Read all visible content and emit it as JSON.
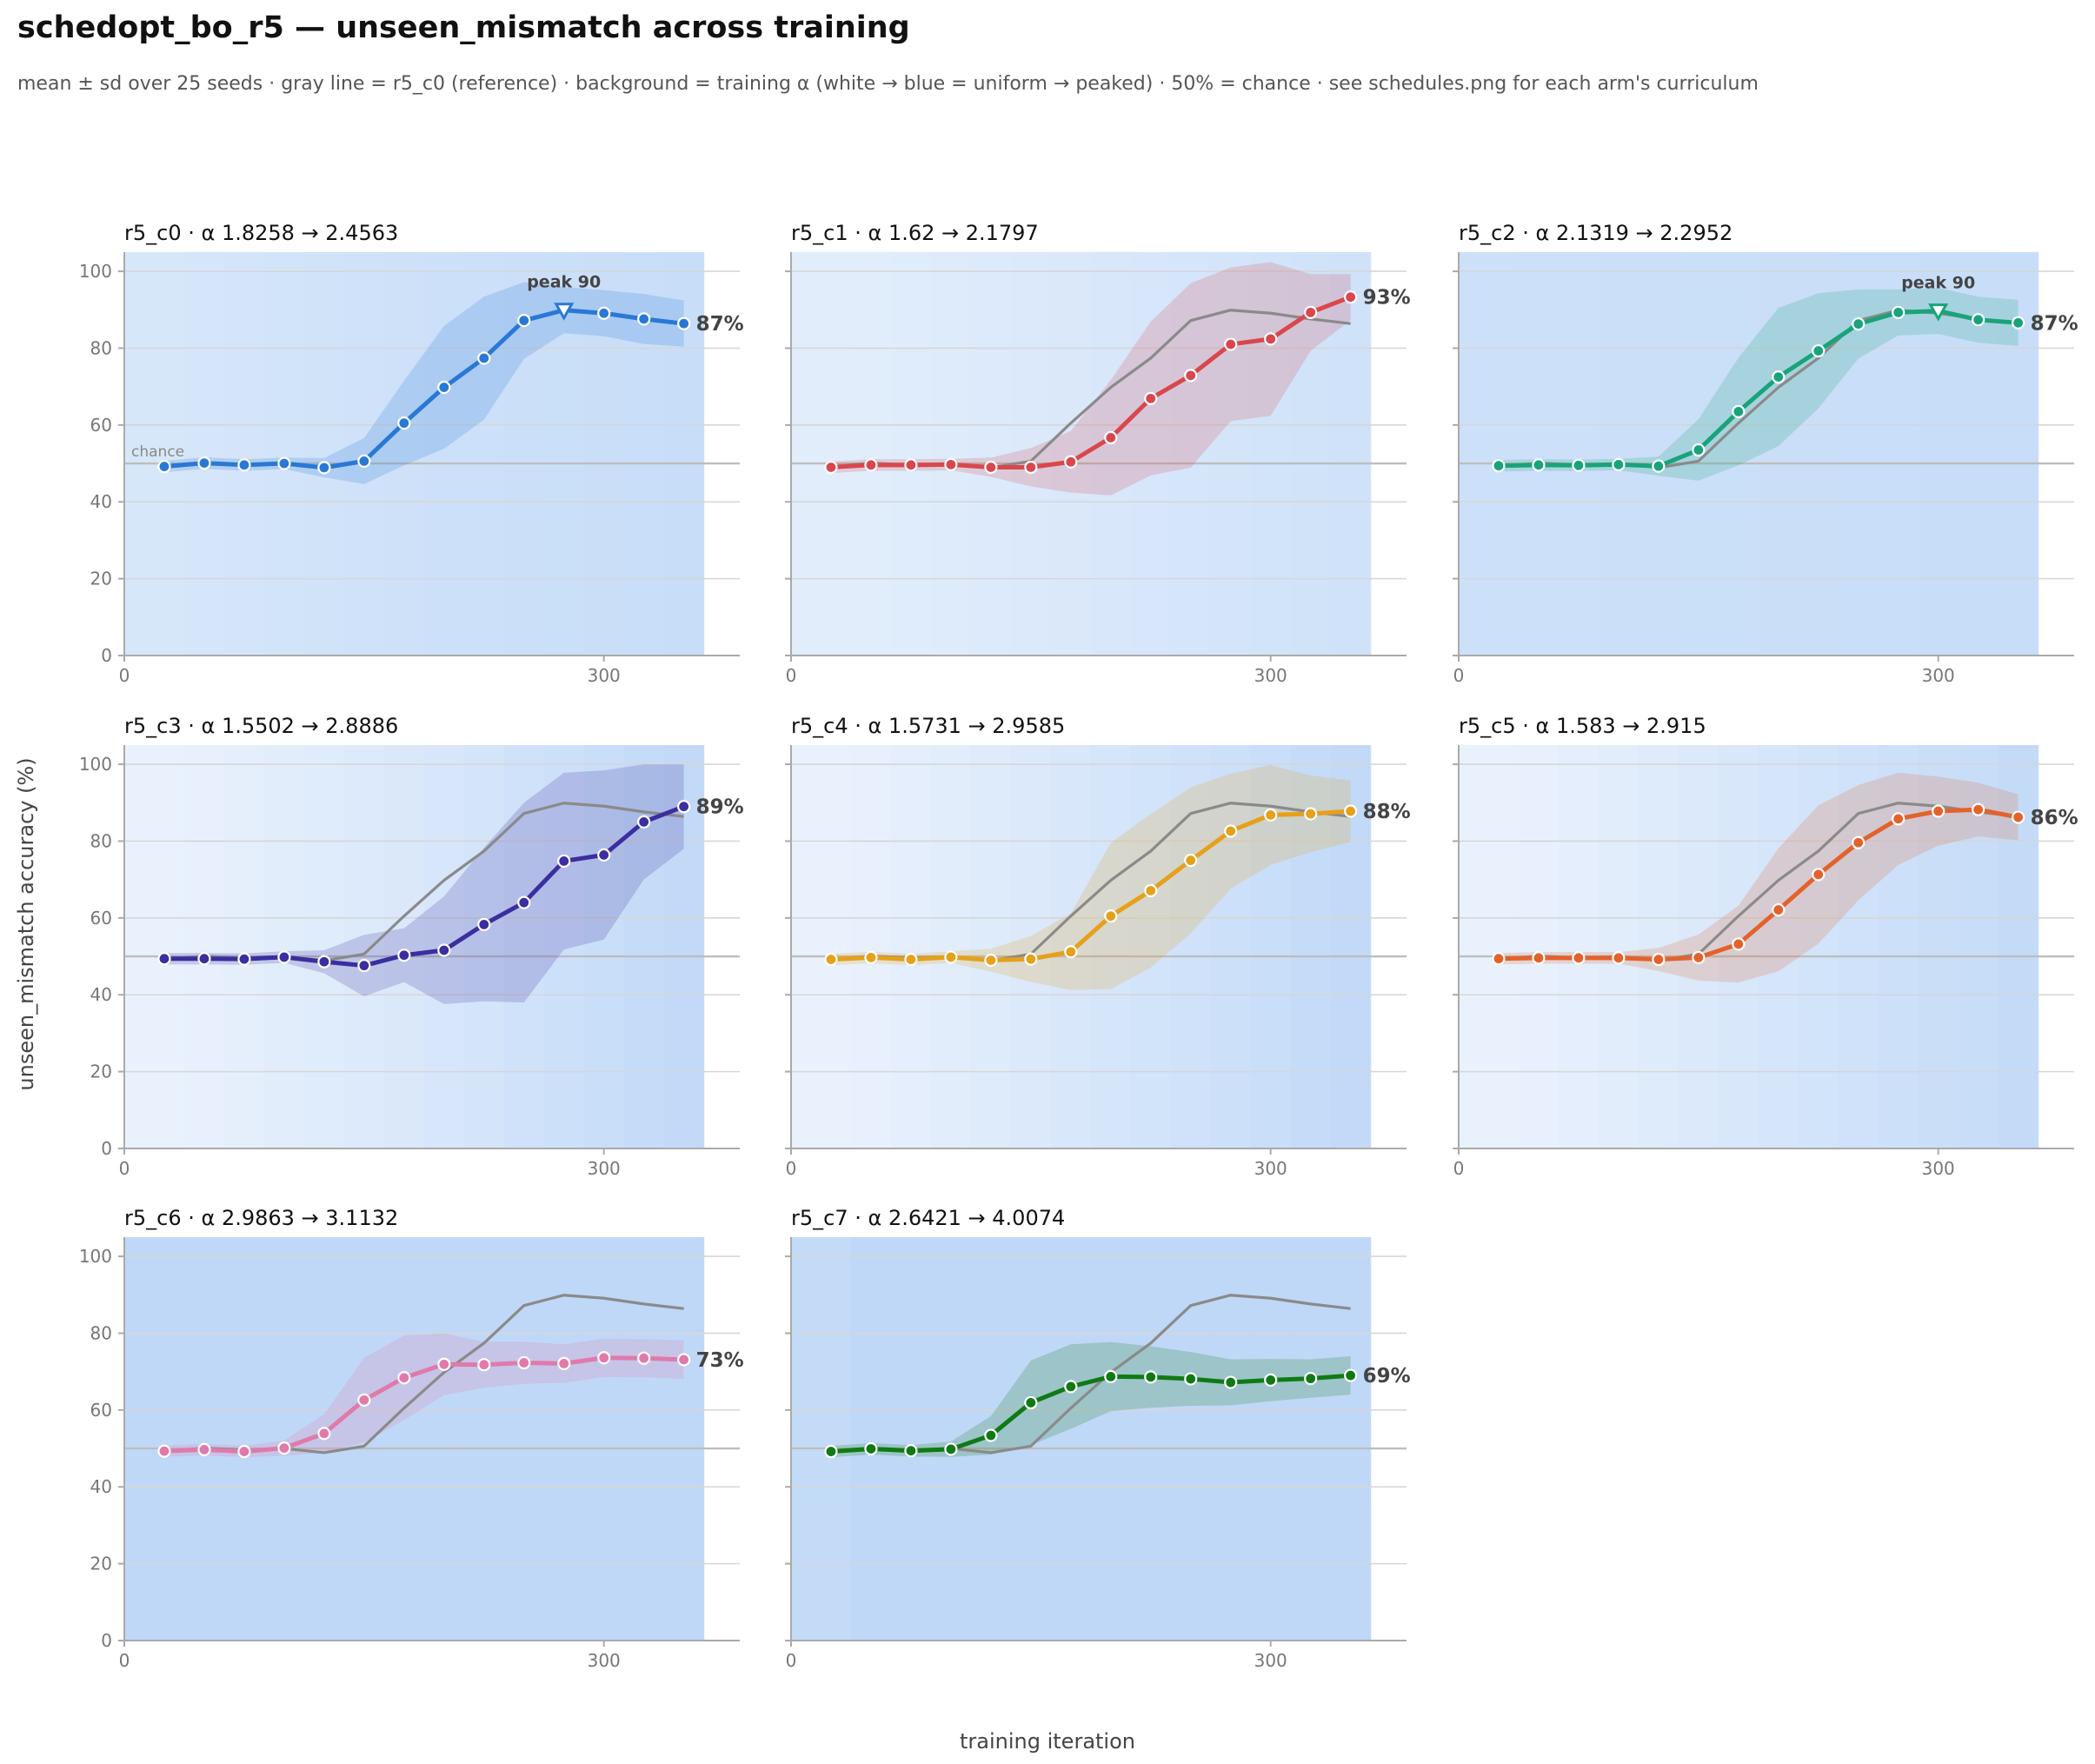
{
  "title": "schedopt_bo_r5 — unseen_mismatch across training",
  "subtitle": "mean ± sd over 25 seeds · gray line = r5_c0 (reference) · background = training α (white → blue = uniform → peaked) · 50% = chance · see schedules.png for each arm's curriculum",
  "chart_data": {
    "type": "line",
    "xlabel": "training iteration",
    "ylabel": "unseen_mismatch accuracy (%)",
    "xlim": [
      0,
      385
    ],
    "ylim": [
      0,
      105
    ],
    "x_ticks": [
      0,
      300
    ],
    "x_tick_labels": [
      "0",
      "300"
    ],
    "y_ticks": [
      0,
      20,
      40,
      60,
      80,
      100
    ],
    "y_tick_labels": [
      "0",
      "20",
      "40",
      "60",
      "80",
      "100"
    ],
    "x": [
      25,
      50,
      75,
      100,
      125,
      150,
      175,
      200,
      225,
      250,
      275,
      300,
      325,
      350
    ],
    "alpha_segment_width": 25,
    "chance_level": 50,
    "chance_label": "chance",
    "grid": "horizontal",
    "reference": {
      "name": "r5_c0",
      "color": "#8a8a8a",
      "values": [
        49.2,
        50.1,
        49.6,
        50.0,
        48.9,
        50.6,
        60.5,
        69.8,
        77.4,
        87.2,
        89.9,
        89.1,
        87.6,
        86.4
      ]
    },
    "panels": [
      {
        "name": "r5_c0",
        "sep": "·",
        "alpha_text": "α 1.8258 → 2.4563",
        "color": "#2a78d6",
        "values": [
          49.2,
          50.1,
          49.6,
          50.0,
          48.9,
          50.6,
          60.5,
          69.8,
          77.4,
          87.2,
          89.9,
          89.1,
          87.6,
          86.4
        ],
        "sd": [
          1.5,
          1.5,
          1.5,
          1.5,
          2.5,
          6.0,
          11.0,
          16.0,
          16.0,
          10.0,
          6.0,
          6.0,
          6.5,
          6.0
        ],
        "alpha_levels": [
          0.55,
          0.58,
          0.6,
          0.62,
          0.64,
          0.66,
          0.68,
          0.7,
          0.71,
          0.72,
          0.73,
          0.74,
          0.75,
          0.76
        ],
        "end_label": "87%",
        "peak": {
          "x": 275,
          "y": 89.9,
          "label": "peak 90"
        },
        "show_chance_label": true
      },
      {
        "name": "r5_c1",
        "sep": "·",
        "alpha_text": "α 1.62 → 2.1797",
        "color": "#d9474c",
        "values": [
          49.0,
          49.6,
          49.6,
          49.7,
          49.0,
          49.0,
          50.4,
          56.7,
          66.9,
          72.9,
          81.0,
          82.4,
          89.3,
          93.3
        ],
        "sd": [
          1.5,
          1.5,
          1.5,
          1.5,
          2.5,
          5.0,
          8.0,
          15.0,
          20.0,
          24.0,
          20.0,
          20.0,
          10.0,
          6.0
        ],
        "alpha_levels": [
          0.4,
          0.42,
          0.44,
          0.46,
          0.48,
          0.5,
          0.52,
          0.54,
          0.56,
          0.58,
          0.6,
          0.62,
          0.64,
          0.66
        ],
        "end_label": "93%",
        "peak": null,
        "show_chance_label": false
      },
      {
        "name": "r5_c2",
        "sep": "·",
        "alpha_text": "α 2.1319 → 2.2952",
        "color": "#1aa37a",
        "values": [
          49.4,
          49.6,
          49.5,
          49.7,
          49.3,
          53.5,
          63.5,
          72.5,
          79.3,
          86.3,
          89.3,
          89.7,
          87.4,
          86.6
        ],
        "sd": [
          1.5,
          1.5,
          1.5,
          1.5,
          2.5,
          8.0,
          14.0,
          18.0,
          15.0,
          9.0,
          6.0,
          6.0,
          6.0,
          6.0
        ],
        "alpha_levels": [
          0.7,
          0.71,
          0.71,
          0.72,
          0.72,
          0.73,
          0.73,
          0.74,
          0.74,
          0.75,
          0.75,
          0.76,
          0.76,
          0.77
        ],
        "end_label": "87%",
        "peak": {
          "x": 300,
          "y": 89.7,
          "label": "peak 90"
        },
        "show_chance_label": false
      },
      {
        "name": "r5_c3",
        "sep": "·",
        "alpha_text": "α 1.5502 → 2.8886",
        "color": "#3a2ea0",
        "values": [
          49.4,
          49.4,
          49.3,
          49.8,
          48.6,
          47.6,
          50.3,
          51.6,
          58.3,
          64.0,
          74.8,
          76.4,
          85.0,
          89.0
        ],
        "sd": [
          1.5,
          1.5,
          1.5,
          1.5,
          3.0,
          8.0,
          7.0,
          14.0,
          20.0,
          26.0,
          23.0,
          22.0,
          15.0,
          11.0
        ],
        "alpha_levels": [
          0.3,
          0.33,
          0.36,
          0.4,
          0.44,
          0.48,
          0.52,
          0.56,
          0.6,
          0.65,
          0.7,
          0.75,
          0.8,
          0.85
        ],
        "end_label": "89%",
        "peak": null,
        "show_chance_label": false
      },
      {
        "name": "r5_c4",
        "sep": "·",
        "alpha_text": "α 1.5731 → 2.9585",
        "color": "#e6a01a",
        "values": [
          49.2,
          49.7,
          49.2,
          49.8,
          49.0,
          49.3,
          51.2,
          60.5,
          67.1,
          75.0,
          82.6,
          86.8,
          87.1,
          87.8
        ],
        "sd": [
          1.5,
          1.5,
          1.5,
          1.5,
          3.0,
          6.0,
          10.0,
          19.0,
          20.0,
          19.0,
          15.0,
          13.0,
          10.0,
          8.0
        ],
        "alpha_levels": [
          0.3,
          0.34,
          0.38,
          0.42,
          0.46,
          0.5,
          0.54,
          0.58,
          0.62,
          0.66,
          0.7,
          0.75,
          0.8,
          0.85
        ],
        "end_label": "88%",
        "peak": null,
        "show_chance_label": false
      },
      {
        "name": "r5_c5",
        "sep": "·",
        "alpha_text": "α 1.583 → 2.915",
        "color": "#e3622c",
        "values": [
          49.4,
          49.6,
          49.6,
          49.6,
          49.2,
          49.7,
          53.2,
          62.1,
          71.3,
          79.6,
          85.8,
          87.8,
          88.2,
          86.2
        ],
        "sd": [
          1.5,
          1.5,
          1.5,
          1.5,
          3.0,
          6.0,
          10.0,
          16.0,
          18.0,
          15.0,
          12.0,
          9.0,
          7.0,
          6.0
        ],
        "alpha_levels": [
          0.3,
          0.34,
          0.38,
          0.42,
          0.46,
          0.5,
          0.54,
          0.58,
          0.62,
          0.66,
          0.7,
          0.74,
          0.78,
          0.82
        ],
        "end_label": "86%",
        "peak": null,
        "show_chance_label": false
      },
      {
        "name": "r5_c6",
        "sep": "·",
        "alpha_text": "α 2.9863 → 3.1132",
        "color": "#e07aaa",
        "values": [
          49.3,
          49.7,
          49.2,
          50.1,
          53.9,
          62.6,
          68.4,
          71.9,
          71.8,
          72.3,
          72.1,
          73.6,
          73.5,
          73.1
        ],
        "sd": [
          1.5,
          1.5,
          1.5,
          2.0,
          5.0,
          11.0,
          11.0,
          8.0,
          6.0,
          5.5,
          5.0,
          5.0,
          5.0,
          5.0
        ],
        "alpha_levels": [
          0.88,
          0.88,
          0.88,
          0.88,
          0.88,
          0.88,
          0.88,
          0.88,
          0.88,
          0.88,
          0.88,
          0.88,
          0.88,
          0.88
        ],
        "end_label": "73%",
        "peak": null,
        "show_chance_label": false
      },
      {
        "name": "r5_c7",
        "sep": "·",
        "alpha_text": "α 2.6421 → 4.0074",
        "color": "#0f7a14",
        "values": [
          49.2,
          49.9,
          49.4,
          49.8,
          53.4,
          61.9,
          66.1,
          68.7,
          68.6,
          68.1,
          67.2,
          67.8,
          68.2,
          69.0
        ],
        "sd": [
          1.5,
          1.5,
          1.5,
          2.0,
          5.0,
          11.0,
          11.0,
          9.0,
          8.0,
          7.0,
          6.0,
          5.5,
          5.0,
          5.0
        ],
        "alpha_levels": [
          0.82,
          0.88,
          0.88,
          0.88,
          0.88,
          0.88,
          0.88,
          0.88,
          0.88,
          0.88,
          0.88,
          0.88,
          0.88,
          0.88
        ],
        "end_label": "69%",
        "peak": null,
        "show_chance_label": false
      }
    ]
  }
}
